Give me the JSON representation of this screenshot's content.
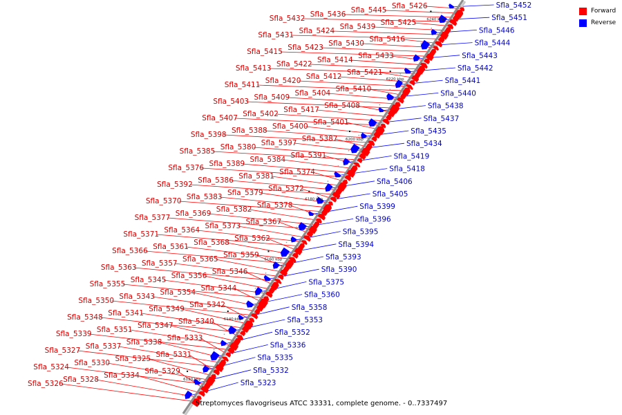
{
  "caption": "Streptomyces flavogriseus ATCC 33331, complete genome. - 0..7337497",
  "legend": [
    {
      "label": "Forward",
      "color": "#ff0000"
    },
    {
      "label": "Reverse",
      "color": "#0000ff"
    }
  ],
  "colors": {
    "forward": "#ff0000",
    "reverse": "#0000ff",
    "forward_text": "#d40000",
    "reverse_text": "#0000c8",
    "axis": "#8c8c8c"
  },
  "ticks": [
    "6120 kbp",
    "6140 kbp",
    "6160 kbp",
    "6180 kbp",
    "6200 kbp",
    "6220 kbp",
    "6240 kbp"
  ],
  "forward_genes": [
    "Sfla_5426",
    "Sfla_5445",
    "Sfla_5436",
    "Sfla_5432",
    "Sfla_5425",
    "Sfla_5439",
    "Sfla_5424",
    "Sfla_5431",
    "Sfla_5416",
    "Sfla_5430",
    "Sfla_5423",
    "Sfla_5415",
    "Sfla_5433",
    "Sfla_5414",
    "Sfla_5422",
    "Sfla_5413",
    "Sfla_5421",
    "Sfla_5412",
    "Sfla_5420",
    "Sfla_5411",
    "Sfla_5410",
    "Sfla_5404",
    "Sfla_5409",
    "Sfla_5403",
    "Sfla_5408",
    "Sfla_5417",
    "Sfla_5402",
    "Sfla_5407",
    "Sfla_5401",
    "Sfla_5400",
    "Sfla_5388",
    "Sfla_5398",
    "Sfla_5387",
    "Sfla_5397",
    "Sfla_5380",
    "Sfla_5385",
    "Sfla_5391",
    "Sfla_5384",
    "Sfla_5389",
    "Sfla_5376",
    "Sfla_5374",
    "Sfla_5381",
    "Sfla_5386",
    "Sfla_5392",
    "Sfla_5372",
    "Sfla_5379",
    "Sfla_5383",
    "Sfla_5370",
    "Sfla_5378",
    "Sfla_5382",
    "Sfla_5369",
    "Sfla_5377",
    "Sfla_5367",
    "Sfla_5373",
    "Sfla_5364",
    "Sfla_5371",
    "Sfla_5362",
    "Sfla_5368",
    "Sfla_5361",
    "Sfla_5366",
    "Sfla_5359",
    "Sfla_5365",
    "Sfla_5357",
    "Sfla_5363",
    "Sfla_5346",
    "Sfla_5356",
    "Sfla_5345",
    "Sfla_5355",
    "Sfla_5344",
    "Sfla_5354",
    "Sfla_5343",
    "Sfla_5350",
    "Sfla_5342",
    "Sfla_5349",
    "Sfla_5341",
    "Sfla_5348",
    "Sfla_5340",
    "Sfla_5347",
    "Sfla_5351",
    "Sfla_5339",
    "Sfla_5333",
    "Sfla_5338",
    "Sfla_5337",
    "Sfla_5327",
    "Sfla_5331",
    "Sfla_5325",
    "Sfla_5330",
    "Sfla_5324",
    "Sfla_5329",
    "Sfla_5334",
    "Sfla_5328",
    "Sfla_5326"
  ],
  "reverse_genes": [
    "Sfla_5452",
    "Sfla_5451",
    "Sfla_5446",
    "Sfla_5444",
    "Sfla_5443",
    "Sfla_5442",
    "Sfla_5441",
    "Sfla_5440",
    "Sfla_5438",
    "Sfla_5437",
    "Sfla_5435",
    "Sfla_5434",
    "Sfla_5419",
    "Sfla_5418",
    "Sfla_5406",
    "Sfla_5405",
    "Sfla_5399",
    "Sfla_5396",
    "Sfla_5395",
    "Sfla_5394",
    "Sfla_5393",
    "Sfla_5390",
    "Sfla_5375",
    "Sfla_5360",
    "Sfla_5358",
    "Sfla_5353",
    "Sfla_5352",
    "Sfla_5336",
    "Sfla_5335",
    "Sfla_5332",
    "Sfla_5323"
  ]
}
